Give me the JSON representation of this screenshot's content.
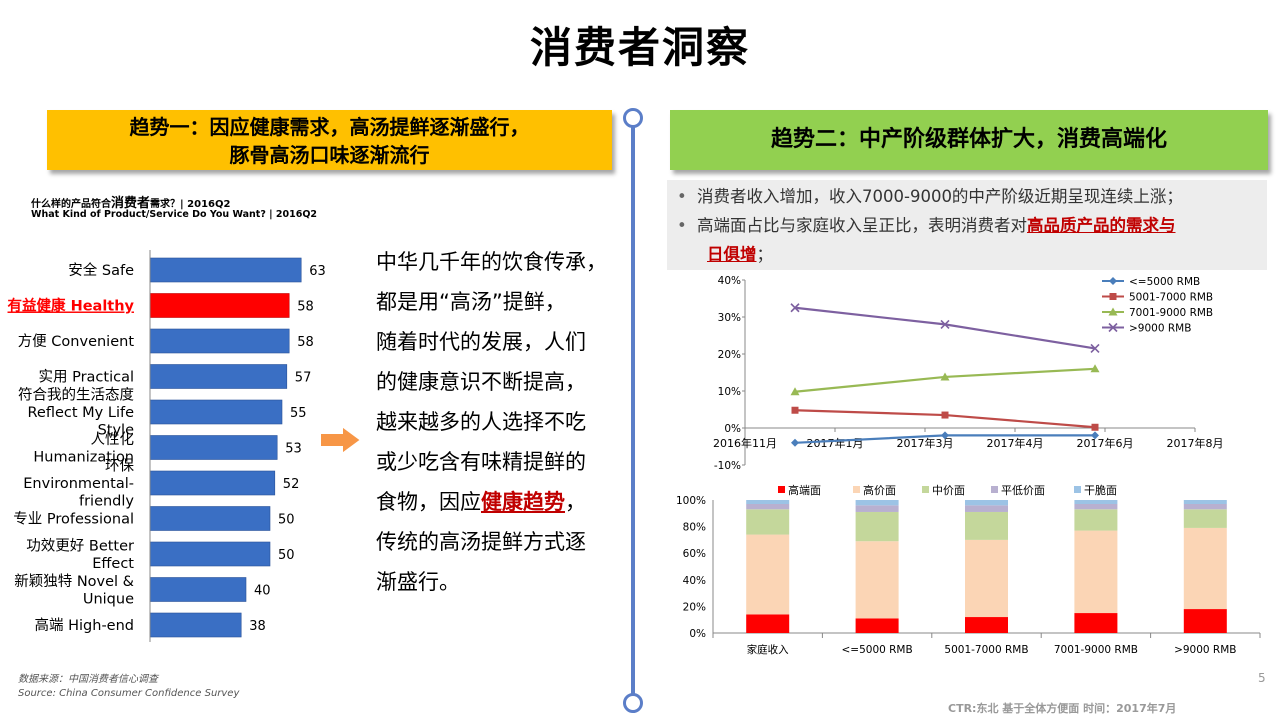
{
  "title": "消费者洞察",
  "trend1": {
    "line1": "趋势一：因应健康需求，高汤提鲜逐渐盛行，",
    "line2": "豚骨高汤口味逐渐流行"
  },
  "trend2": {
    "title": "趋势二：中产阶级群体扩大，消费高端化"
  },
  "survey": {
    "question_cn_prefix": "什么样的产品符合",
    "question_cn_big": "消费者",
    "question_cn_suffix": "需求？| 2016Q2",
    "question_en": "What Kind of Product/Service  Do You Want? | 2016Q2"
  },
  "source": {
    "cn": "数据来源：中国消费者信心调查",
    "en": "Source: China Consumer Confidence Survey"
  },
  "narrative": {
    "lines": [
      "中华几千年的饮食传承，",
      "都是用“高汤”提鲜，",
      "随着时代的发展，人们",
      "的健康意识不断提高，",
      "越来越多的人选择不吃",
      "或少吃含有味精提鲜的",
      "食物，因应"
    ],
    "emphasis": "健康趋势",
    "tail_lines": [
      "，",
      "传统的高汤提鲜方式逐",
      "渐盛行。"
    ]
  },
  "bullets": {
    "b1": "消费者收入增加，收入7000-9000的中产阶级近期呈现连续上涨；",
    "b2_prefix": "高端面占比与家庭收入呈正比，表明消费者对",
    "b2_emph_1": "高品质产品的需求与",
    "b2_emph_2": "日俱增",
    "b2_suffix": "；"
  },
  "page_number": "5",
  "footer": "CTR:东北   基于全体方便面 时间：2017年7月",
  "colors": {
    "bar_blue": "#3a6fc4",
    "bar_red": "#ff0000",
    "highlight_red": "#c00000",
    "series_lt5000": "#4a7ebb",
    "series_5001_7000": "#be4b48",
    "series_7001_9000": "#98b954",
    "series_gt9000": "#7d60a0",
    "stack_high": "#ff0000",
    "stack_midhigh": "#fbd5b5",
    "stack_mid": "#c4d79b",
    "stack_low": "#b8b0d0",
    "stack_dry": "#9cc3e5"
  },
  "chart_data": [
    {
      "type": "bar",
      "orientation": "horizontal",
      "categories": [
        [
          "安全 Safe"
        ],
        [
          "有益健康 Healthy"
        ],
        [
          "方便 Convenient"
        ],
        [
          "实用 Practical"
        ],
        [
          "符合我的生活态度",
          "Reflect My Life",
          "Style"
        ],
        [
          "人性化",
          "Humanization"
        ],
        [
          "环保",
          "Environmental-",
          "friendly"
        ],
        [
          "专业 Professional"
        ],
        [
          "功效更好 Better",
          "Effect"
        ],
        [
          "新颖独特 Novel &",
          "Unique"
        ],
        [
          "高端 High-end"
        ]
      ],
      "values": [
        63,
        58,
        58,
        57,
        55,
        53,
        52,
        50,
        50,
        40,
        38
      ],
      "highlight_index": 1
    },
    {
      "type": "line",
      "x": [
        "2016-12",
        "2017-03",
        "2017-06"
      ],
      "x_ticks": [
        "2016年11月",
        "2017年1月",
        "2017年3月",
        "2017年4月",
        "2017年6月",
        "2017年8月"
      ],
      "y_ticks": [
        "40%",
        "30%",
        "20%",
        "10%",
        "0%",
        "-10%"
      ],
      "ylim": [
        -10,
        40
      ],
      "series": [
        {
          "name": "<=5000 RMB",
          "values": [
            -4,
            -2,
            -2
          ],
          "marker": "diamond"
        },
        {
          "name": "5001-7000 RMB",
          "values": [
            4.8,
            3.5,
            0.2
          ],
          "marker": "square"
        },
        {
          "name": "7001-9000 RMB",
          "values": [
            9.8,
            13.8,
            16
          ],
          "marker": "triangle"
        },
        {
          "name": ">9000 RMB",
          "values": [
            32.5,
            28,
            21.5
          ],
          "marker": "x"
        }
      ]
    },
    {
      "type": "bar",
      "stacked": true,
      "categories": [
        "家庭收入",
        "<=5000 RMB",
        "5001-7000 RMB",
        "7001-9000 RMB",
        ">9000 RMB"
      ],
      "y_ticks": [
        "100%",
        "80%",
        "60%",
        "40%",
        "20%",
        "0%"
      ],
      "ylim": [
        0,
        100
      ],
      "series": [
        {
          "name": "高端面",
          "values": [
            14,
            11,
            12,
            15,
            18
          ]
        },
        {
          "name": "高价面",
          "values": [
            60,
            58,
            58,
            62,
            61
          ]
        },
        {
          "name": "中价面",
          "values": [
            19,
            22,
            21,
            16,
            14
          ]
        },
        {
          "name": "平低价面",
          "values": [
            4,
            5,
            5,
            4,
            4
          ]
        },
        {
          "name": "干脆面",
          "values": [
            3,
            4,
            4,
            3,
            3
          ]
        }
      ]
    }
  ]
}
